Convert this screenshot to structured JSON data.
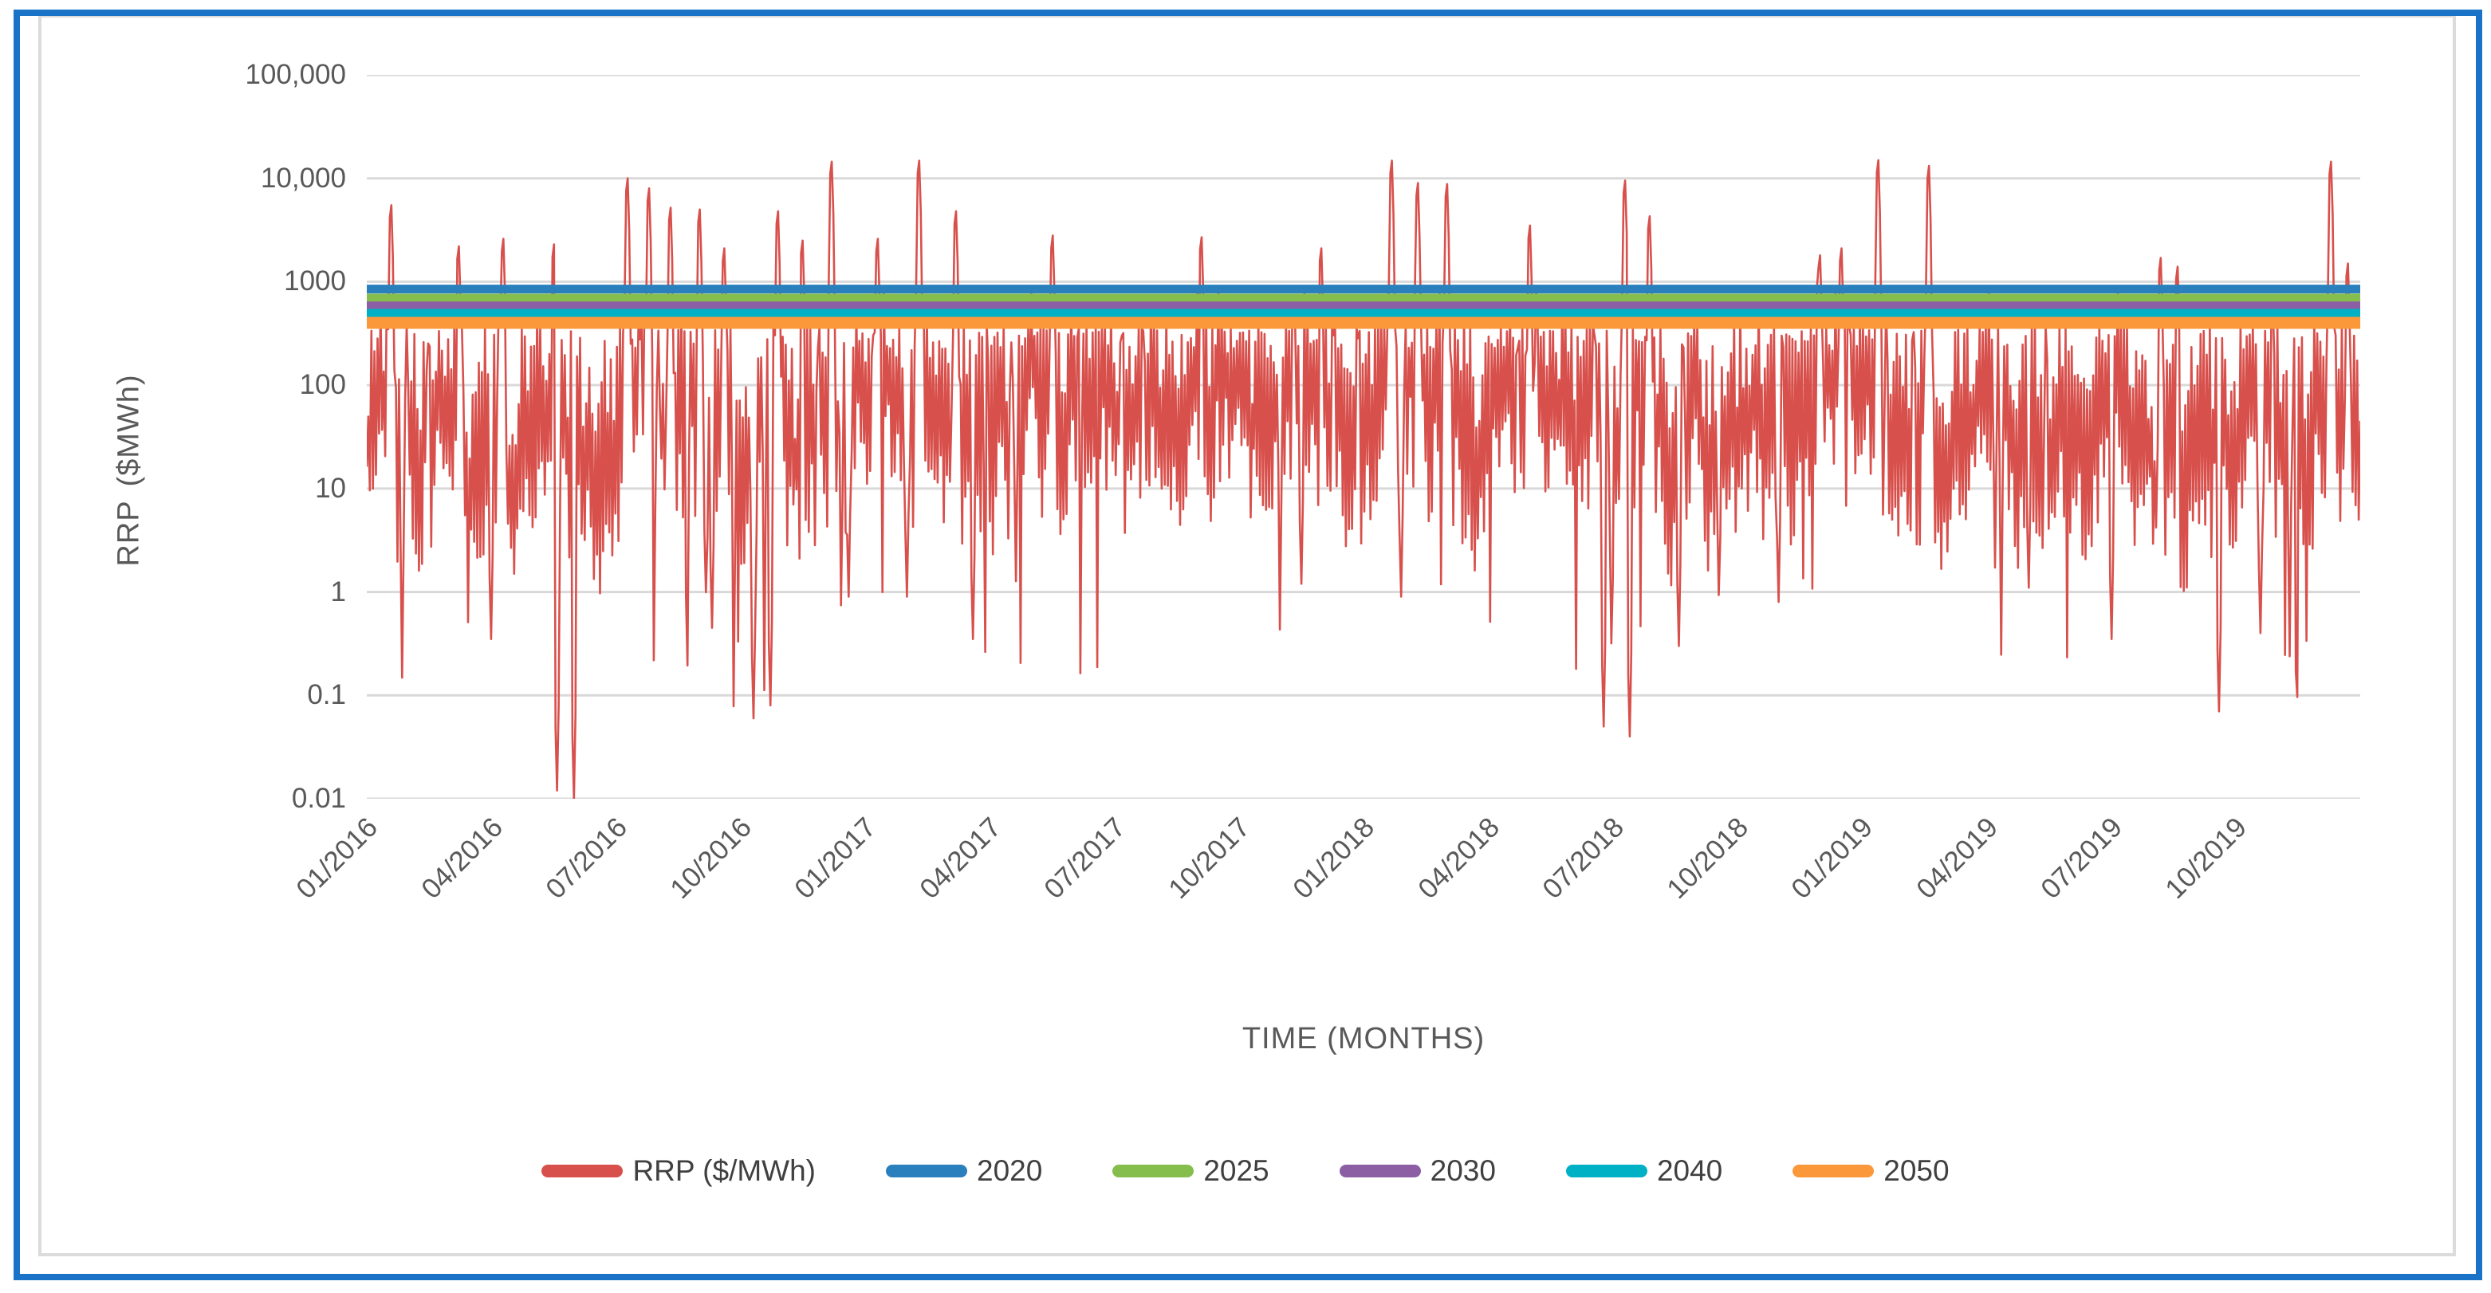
{
  "figure": {
    "background": "#FFFFFF",
    "outer_border_color": "#1B73C7",
    "chart_frame_color": "#DBDBDB",
    "gridline_color": "#D9D9D9",
    "axis_text_color": "#595959",
    "legend_text_color": "#404040"
  },
  "chart_data": {
    "type": "line",
    "title": "",
    "xlabel": "TIME (MONTHS)",
    "ylabel": "RRP ($MWh)",
    "y_scale": "log",
    "ylim": [
      0.01,
      100000
    ],
    "grid": true,
    "legend_position": "bottom",
    "y_ticks": [
      {
        "label": "100,000",
        "value": 100000
      },
      {
        "label": "10,000",
        "value": 10000
      },
      {
        "label": "1000",
        "value": 1000
      },
      {
        "label": "100",
        "value": 100
      },
      {
        "label": "10",
        "value": 10
      },
      {
        "label": "1",
        "value": 1
      },
      {
        "label": "0.1",
        "value": 0.1
      },
      {
        "label": "0.01",
        "value": 0.01
      }
    ],
    "x_ticks": [
      "01/2016",
      "04/2016",
      "07/2016",
      "10/2016",
      "01/2017",
      "04/2017",
      "07/2017",
      "10/2017",
      "01/2018",
      "04/2018",
      "07/2018",
      "10/2018",
      "01/2019",
      "04/2019",
      "07/2019",
      "10/2019"
    ],
    "x_range_months": 48,
    "series": [
      {
        "name": "RRP ($/MWh)",
        "color": "#D8504C",
        "kind": "noisy"
      },
      {
        "name": "2020",
        "color": "#2980BC",
        "kind": "constant",
        "value": 850,
        "width": 11
      },
      {
        "name": "2025",
        "color": "#85BE4D",
        "kind": "constant",
        "value": 700,
        "width": 10
      },
      {
        "name": "2030",
        "color": "#8C5FA5",
        "kind": "constant",
        "value": 590,
        "width": 10
      },
      {
        "name": "2040",
        "color": "#00B0C4",
        "kind": "constant",
        "value": 500,
        "width": 10
      },
      {
        "name": "2050",
        "color": "#FA983A",
        "kind": "constant",
        "value": 400,
        "width": 15
      }
    ],
    "rrp_profile": {
      "seed": 20164,
      "points": 1300,
      "monthly_median_log10": [
        1.7,
        1.6,
        1.55,
        1.5,
        1.45,
        1.5,
        1.6,
        1.55,
        1.5,
        1.45,
        1.6,
        1.7,
        1.8,
        1.75,
        1.7,
        1.8,
        1.85,
        1.9,
        1.9,
        1.85,
        1.8,
        1.75,
        1.8,
        1.85,
        1.9,
        1.85,
        1.8,
        1.75,
        1.7,
        1.6,
        1.55,
        1.5,
        1.55,
        1.6,
        1.7,
        1.75,
        1.85,
        1.8,
        1.75,
        1.7,
        1.7,
        1.65,
        1.6,
        1.55,
        1.5,
        1.55,
        1.6,
        1.65
      ],
      "spikes_month_value": [
        [
          0.6,
          5500
        ],
        [
          2.2,
          2200
        ],
        [
          3.3,
          2600
        ],
        [
          4.5,
          2300
        ],
        [
          6.3,
          10000
        ],
        [
          6.8,
          8000
        ],
        [
          7.3,
          5200
        ],
        [
          8.0,
          5000
        ],
        [
          8.6,
          2100
        ],
        [
          9.9,
          4800
        ],
        [
          10.5,
          2500
        ],
        [
          11.2,
          14500
        ],
        [
          12.3,
          2600
        ],
        [
          13.3,
          14800
        ],
        [
          14.2,
          4800
        ],
        [
          16.5,
          2800
        ],
        [
          20.1,
          2700
        ],
        [
          23.0,
          2100
        ],
        [
          24.7,
          14800
        ],
        [
          25.3,
          9000
        ],
        [
          26.0,
          8800
        ],
        [
          28.0,
          3500
        ],
        [
          30.3,
          9500
        ],
        [
          30.9,
          4300
        ],
        [
          35.0,
          1800
        ],
        [
          35.5,
          2100
        ],
        [
          36.4,
          15000
        ],
        [
          37.6,
          13200
        ],
        [
          43.2,
          1700
        ],
        [
          43.6,
          1400
        ],
        [
          47.3,
          14500
        ],
        [
          47.7,
          1500
        ]
      ],
      "dips_month_value": [
        [
          3.0,
          0.35
        ],
        [
          4.6,
          0.012
        ],
        [
          5.0,
          0.01
        ],
        [
          8.3,
          0.45
        ],
        [
          9.3,
          0.06
        ],
        [
          9.7,
          0.08
        ],
        [
          11.6,
          0.9
        ],
        [
          13.0,
          0.9
        ],
        [
          14.6,
          0.35
        ],
        [
          22.5,
          1.2
        ],
        [
          24.9,
          0.9
        ],
        [
          29.8,
          0.05
        ],
        [
          30.4,
          0.04
        ],
        [
          31.6,
          0.3
        ],
        [
          34.0,
          0.8
        ],
        [
          40.0,
          1.1
        ],
        [
          42.0,
          0.35
        ],
        [
          44.6,
          0.07
        ],
        [
          45.6,
          0.4
        ]
      ]
    }
  }
}
